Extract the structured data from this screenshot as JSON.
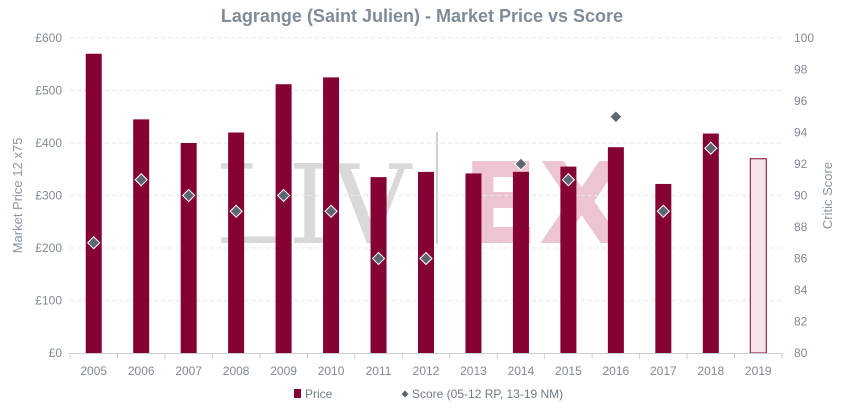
{
  "chart_data": {
    "type": "bar",
    "title": "Lagrange (Saint Julien) - Market Price vs Score",
    "categories": [
      "2005",
      "2006",
      "2007",
      "2008",
      "2009",
      "2010",
      "2011",
      "2012",
      "2013",
      "2014",
      "2015",
      "2016",
      "2017",
      "2018",
      "2019"
    ],
    "series": [
      {
        "name": "Price",
        "type": "bar",
        "axis": "left",
        "values": [
          570,
          445,
          400,
          420,
          512,
          525,
          335,
          345,
          342,
          345,
          355,
          392,
          322,
          418,
          370
        ],
        "highlighted_category": "2019"
      },
      {
        "name": "Score (05-12 RP, 13-19 NM)",
        "type": "scatter",
        "axis": "right",
        "values": [
          87,
          91,
          90,
          89,
          90,
          89,
          86,
          86,
          null,
          92,
          91,
          95,
          89,
          93,
          null
        ]
      }
    ],
    "ylabel_left": "Market Price 12 x75",
    "ylabel_right": "Critic Score",
    "ylim_left": [
      0,
      600
    ],
    "ylim_right": [
      80,
      100
    ],
    "yticks_left": [
      "£0",
      "£100",
      "£200",
      "£300",
      "£400",
      "£500",
      "£600"
    ],
    "yticks_right": [
      "80",
      "82",
      "84",
      "86",
      "88",
      "90",
      "92",
      "94",
      "96",
      "98",
      "100"
    ],
    "grid": true,
    "legend_position": "bottom-center",
    "colors": {
      "bar": "#850033",
      "bar_highlight_fill": "#f7e3ea",
      "bar_highlight_stroke": "#850033",
      "marker": "#5d6670",
      "marker_stroke": "#ffffff"
    },
    "watermark": "LIV-EX"
  }
}
